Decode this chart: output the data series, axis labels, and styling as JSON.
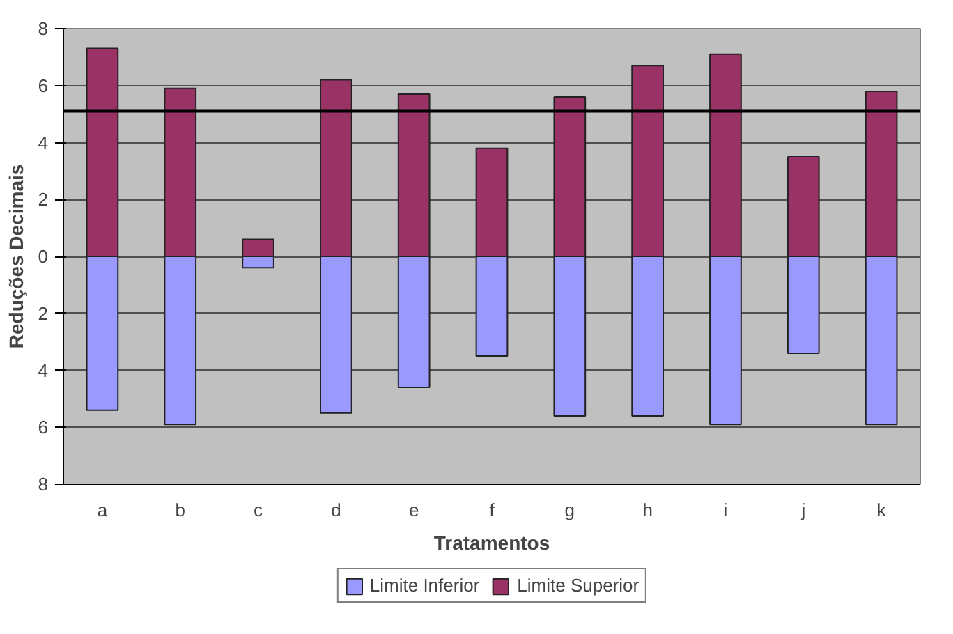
{
  "chart_data": {
    "type": "bar",
    "xlabel": "Tratamentos",
    "ylabel": "Reduções Decimais",
    "categories": [
      "a",
      "b",
      "c",
      "d",
      "e",
      "f",
      "g",
      "h",
      "i",
      "j",
      "k"
    ],
    "series": [
      {
        "name": "Limite Inferior",
        "color": "#9999ff",
        "values": [
          -5.4,
          -5.9,
          -0.4,
          -5.5,
          -4.6,
          -3.5,
          -5.6,
          -5.6,
          -5.9,
          -3.4,
          -5.9
        ]
      },
      {
        "name": "Limite Superior",
        "color": "#993366",
        "values": [
          7.3,
          5.9,
          0.6,
          6.2,
          5.7,
          3.8,
          5.6,
          6.7,
          7.1,
          3.5,
          5.8
        ]
      }
    ],
    "ylim": [
      -8,
      8
    ],
    "yticks": [
      {
        "value": -8,
        "label": "8"
      },
      {
        "value": -6,
        "label": "6"
      },
      {
        "value": -4,
        "label": "4"
      },
      {
        "value": -2,
        "label": "2"
      },
      0,
      2,
      4,
      6,
      8
    ],
    "ref_lines": [
      {
        "axis": "y",
        "value": 5.1,
        "color": "#000000"
      }
    ],
    "grid": "y",
    "legend": "bottom",
    "stacked": true
  }
}
